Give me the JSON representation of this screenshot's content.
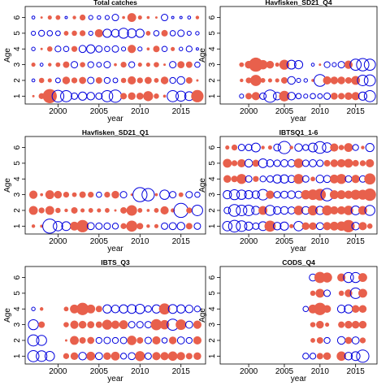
{
  "figure": {
    "colors": {
      "positive": "#E8604C",
      "negative": "#0000DD",
      "frame": "#000000"
    }
  },
  "chart_data": [
    {
      "type": "scatter",
      "title": "Total catches",
      "xlabel": "year",
      "ylabel": "Age",
      "xlim": [
        1996,
        2018
      ],
      "ylim": [
        0.5,
        6.7
      ],
      "xticks": [
        "2000",
        "2005",
        "2010",
        "2015"
      ],
      "yticks": [
        "1",
        "2",
        "3",
        "4",
        "5",
        "6"
      ],
      "ages": [
        1,
        2,
        3,
        4,
        5,
        6
      ],
      "years": [
        1997,
        1998,
        1999,
        2000,
        2001,
        2002,
        2003,
        2004,
        2005,
        2006,
        2007,
        2008,
        2009,
        2010,
        2011,
        2012,
        2013,
        2014,
        2015,
        2016,
        2017
      ],
      "residuals": [
        [
          0.3,
          0.9,
          2.3,
          -1.9,
          -1.8,
          -1.0,
          -1.3,
          -1.2,
          -1.0,
          -1.8,
          -2.0,
          1.0,
          1.2,
          1.1,
          1.6,
          0.8,
          0.4,
          -1.8,
          -1.6,
          -1.4,
          2.0
        ],
        [
          -0.4,
          0.8,
          0.6,
          -0.7,
          1.2,
          0.9,
          1.1,
          -1.0,
          1.0,
          -0.9,
          -0.7,
          0.8,
          1.3,
          0.9,
          1.1,
          0.7,
          1.2,
          -0.9,
          -1.2,
          1.0,
          0.3
        ],
        [
          0.6,
          -0.4,
          0.5,
          0.7,
          1.0,
          -1.0,
          0.8,
          -0.9,
          -0.7,
          -1.0,
          0.4,
          0.9,
          -0.9,
          0.6,
          0.6,
          0.8,
          0.3,
          -1.0,
          1.1,
          1.0,
          -0.8
        ],
        [
          -0.5,
          0.3,
          0.8,
          -0.9,
          -0.8,
          0.9,
          -1.1,
          -1.3,
          -1.0,
          -0.8,
          -1.0,
          -0.6,
          1.3,
          -0.6,
          0.4,
          1.0,
          -0.8,
          0.6,
          -0.5,
          -0.9,
          -0.3
        ],
        [
          -0.6,
          -0.9,
          -0.8,
          -0.7,
          0.7,
          0.8,
          0.9,
          -0.6,
          1.3,
          -1.3,
          -1.2,
          -1.6,
          -1.4,
          -1.3,
          0.7,
          -0.8,
          1.0,
          -0.8,
          -1.0,
          -0.6,
          -0.5
        ],
        [
          -0.4,
          0.3,
          0.6,
          0.7,
          -0.3,
          0.5,
          0.9,
          -0.6,
          -0.5,
          -0.6,
          -1.0,
          0.4,
          1.4,
          0.6,
          0.4,
          0.3,
          -1.0,
          -0.3,
          -0.3,
          -0.4,
          0.5
        ]
      ]
    },
    {
      "type": "scatter",
      "title": "Havfisken_SD21_Q4",
      "xlabel": "year",
      "ylabel": "Age",
      "xlim": [
        1996,
        2018
      ],
      "ylim": [
        0.5,
        6.7
      ],
      "xticks": [
        "2000",
        "2005",
        "2010",
        "2015"
      ],
      "yticks": [
        "1",
        "2",
        "3",
        "4",
        "5",
        "6"
      ],
      "ages": [
        1,
        2,
        3,
        4,
        5,
        6
      ],
      "years": [
        1999,
        2000,
        2001,
        2002,
        2003,
        2004,
        2005,
        2006,
        2007,
        2008,
        2009,
        2010,
        2011,
        2012,
        2013,
        2014,
        2015,
        2016,
        2017
      ],
      "residuals": [
        [
          -0.6,
          1.0,
          1.3,
          -1.0,
          -2.0,
          -1.2,
          1.7,
          -1.2,
          -0.8,
          -0.6,
          -0.8,
          -0.7,
          -1.0,
          1.1,
          1.0,
          1.2,
          1.3,
          -1.3,
          -1.8
        ],
        [
          0.5,
          0.9,
          1.8,
          0.7,
          0.6,
          0.6,
          1.0,
          -1.2,
          -0.6,
          -0.5,
          0.4,
          -1.9,
          1.3,
          1.2,
          1.2,
          1.0,
          1.4,
          -1.7,
          -1.8
        ],
        [
          0.7,
          1.2,
          2.3,
          1.5,
          1.2,
          0.6,
          1.6,
          -1.4,
          -1.3,
          0,
          -0.4,
          0.3,
          -0.9,
          -0.6,
          -1.0,
          1.3,
          -1.8,
          -2.0,
          -1.8
        ],
        null,
        null,
        null
      ]
    },
    {
      "type": "scatter",
      "title": "Havfisken_SD21_Q1",
      "xlabel": "year",
      "ylabel": "Age",
      "xlim": [
        1996,
        2018
      ],
      "ylim": [
        0.5,
        6.7
      ],
      "xticks": [
        "2000",
        "2005",
        "2010",
        "2015"
      ],
      "yticks": [
        "1",
        "2",
        "3",
        "4",
        "5",
        "6"
      ],
      "ages": [
        1,
        2,
        3,
        4,
        5,
        6
      ],
      "years": [
        1997,
        1998,
        1999,
        2000,
        2001,
        2002,
        2003,
        2004,
        2005,
        2006,
        2007,
        2008,
        2009,
        2010,
        2011,
        2012,
        2013,
        2014,
        2015,
        2016,
        2017
      ],
      "residuals": [
        [
          0.5,
          0.4,
          -2.3,
          -1.5,
          -1.4,
          1.4,
          2.0,
          -1.1,
          -1.0,
          -1.0,
          -0.9,
          0.9,
          1.8,
          1.0,
          0.5,
          0.6,
          -1.0,
          -1.1,
          -1.2,
          1.0,
          -1.0
        ],
        [
          1.4,
          0.9,
          1.4,
          0.8,
          0.5,
          1.0,
          0.6,
          0.7,
          0.6,
          0.7,
          0.3,
          1.0,
          1.7,
          0.7,
          0.4,
          0.7,
          1.3,
          0.6,
          -2.3,
          0.9,
          -1.7
        ],
        [
          1.3,
          0.4,
          1.4,
          1.2,
          0.9,
          0.7,
          1.0,
          0.9,
          -0.8,
          0.9,
          1.2,
          -1.0,
          0.3,
          -2.3,
          -2.0,
          0.4,
          -1.5,
          -1.0,
          0.7,
          -1.0,
          -0.8
        ],
        null,
        null,
        null
      ]
    },
    {
      "type": "scatter",
      "title": "IBTSQ1_1-6",
      "xlabel": "year",
      "ylabel": "Age",
      "xlim": [
        1996,
        2018
      ],
      "ylim": [
        0.5,
        6.7
      ],
      "xticks": [
        "2000",
        "2005",
        "2010",
        "2015"
      ],
      "yticks": [
        "1",
        "2",
        "3",
        "4",
        "5",
        "6"
      ],
      "ages": [
        1,
        2,
        3,
        4,
        5,
        6
      ],
      "years": [
        1997,
        1998,
        1999,
        2000,
        2001,
        2002,
        2003,
        2004,
        2005,
        2006,
        2007,
        2008,
        2009,
        2010,
        2011,
        2012,
        2013,
        2014,
        2015,
        2016,
        2017
      ],
      "residuals": [
        [
          -1.5,
          -1.9,
          -1.7,
          -1.3,
          -1.0,
          -1.4,
          1.8,
          -1.2,
          -1.3,
          0.6,
          -1.5,
          1.2,
          1.2,
          -1.1,
          1.3,
          1.4,
          1.5,
          2.0,
          -1.2,
          1.3,
          0.8
        ],
        [
          -1.0,
          -1.9,
          -1.7,
          -1.7,
          -1.3,
          1.4,
          -1.6,
          -1.2,
          -1.2,
          -1.1,
          1.5,
          -1.2,
          1.6,
          -1.3,
          1.6,
          1.3,
          1.3,
          1.5,
          -1.4,
          1.4,
          -1.6
        ],
        [
          -1.3,
          -1.6,
          -1.5,
          -1.3,
          -1.2,
          -1.7,
          1.3,
          -1.0,
          -1.1,
          -1.2,
          -1.1,
          1.5,
          1.7,
          1.9,
          -2.0,
          1.4,
          1.4,
          1.3,
          1.6,
          1.6,
          2.0
        ],
        [
          1.2,
          1.0,
          1.6,
          -1.0,
          0.9,
          -0.9,
          -1.0,
          -1.3,
          -1.3,
          -1.1,
          1.6,
          -1.0,
          0.7,
          -1.2,
          -1.1,
          1.4,
          1.6,
          -1.0,
          1.3,
          -1.0,
          1.8
        ],
        [
          1.4,
          0.9,
          1.3,
          -1.2,
          1.1,
          -1.4,
          -1.1,
          -1.0,
          -1.1,
          -1.1,
          1.5,
          -1.0,
          -1.1,
          -1.0,
          1.0,
          1.2,
          1.3,
          1.4,
          1.0,
          0.9,
          1.3
        ],
        [
          0.6,
          0.9,
          -1.0,
          -1.0,
          -1.4,
          0.5,
          0.6,
          -1.1,
          -2.0,
          0.5,
          -1.2,
          -0.9,
          -1.4,
          -1.9,
          -1.5,
          1.3,
          0.8,
          1.4,
          -0.9,
          0.5,
          -1.3
        ]
      ]
    },
    {
      "type": "scatter",
      "title": "IBTS_Q3",
      "xlabel": "year",
      "ylabel": "Age",
      "xlim": [
        1996,
        2018
      ],
      "ylim": [
        0.5,
        6.7
      ],
      "xticks": [
        "2000",
        "2005",
        "2010",
        "2015"
      ],
      "yticks": [
        "1",
        "2",
        "3",
        "4",
        "5",
        "6"
      ],
      "ages": [
        1,
        2,
        3,
        4,
        5,
        6
      ],
      "years": [
        1997,
        1998,
        1999,
        2000,
        2001,
        2002,
        2003,
        2004,
        2005,
        2006,
        2007,
        2008,
        2009,
        2010,
        2011,
        2012,
        2013,
        2014,
        2015,
        2016,
        2017
      ],
      "residuals": [
        [
          -1.8,
          -1.7,
          -1.5,
          0,
          0.9,
          1.2,
          -1.2,
          1.4,
          -1.1,
          1.2,
          1.4,
          -0.9,
          -1.1,
          1.6,
          -1.0,
          1.3,
          1.3,
          1.5,
          1.3,
          1.0,
          1.2
        ],
        [
          -1.8,
          -1.6,
          0,
          0,
          0.3,
          1.4,
          1.0,
          1.1,
          -0.9,
          -1.0,
          -0.9,
          -1.0,
          1.5,
          1.0,
          -1.0,
          1.3,
          -0.8,
          1.2,
          -1.1,
          -0.9,
          1.3
        ],
        [
          -1.6,
          1.0,
          0,
          0,
          0.8,
          1.3,
          1.2,
          1.1,
          1.0,
          1.6,
          1.3,
          1.4,
          -1.0,
          -1.0,
          -1.0,
          1.8,
          1.5,
          -1.8,
          1.7,
          -1.1,
          1.3
        ],
        [
          -0.5,
          0.5,
          0,
          0,
          0.7,
          1.4,
          2.0,
          1.4,
          1.0,
          -1.3,
          -1.2,
          -1.3,
          -1.4,
          -1.5,
          -1.0,
          -1.3,
          1.8,
          -1.4,
          -1.3,
          -1.2,
          -0.9
        ],
        null,
        null
      ]
    },
    {
      "type": "scatter",
      "title": "CODS_Q4",
      "xlabel": "year",
      "ylabel": "Age",
      "xlim": [
        1996,
        2018
      ],
      "ylim": [
        0.5,
        6.7
      ],
      "xticks": [
        "2000",
        "2005",
        "2010",
        "2015"
      ],
      "yticks": [
        "1",
        "2",
        "3",
        "4",
        "5",
        "6"
      ],
      "ages": [
        1,
        2,
        3,
        4,
        5,
        6
      ],
      "years": [
        2008,
        2009,
        2010,
        2011,
        2012,
        2013,
        2014,
        2015,
        2016,
        2017
      ],
      "residuals": [
        [
          -0.9,
          -0.9,
          1.0,
          1.2,
          0,
          1.5,
          -1.2,
          -1.4,
          -2.0,
          0
        ],
        [
          0,
          0.7,
          1.0,
          -0.9,
          0,
          -1.2,
          1.1,
          -1.1,
          0.9,
          0
        ],
        [
          0,
          0.8,
          1.2,
          0.6,
          0,
          1.0,
          1.2,
          1.2,
          1.2,
          0
        ],
        [
          -0.8,
          1.4,
          2.0,
          1.2,
          0,
          -1.2,
          -1.3,
          1.2,
          1.2,
          0
        ],
        [
          0,
          0.8,
          1.4,
          -1.0,
          0,
          0.8,
          1.2,
          -1.7,
          1.4,
          0
        ],
        [
          0,
          -1.1,
          1.8,
          1.6,
          0,
          1.3,
          -1.6,
          -1.6,
          1.4,
          0
        ]
      ]
    }
  ]
}
